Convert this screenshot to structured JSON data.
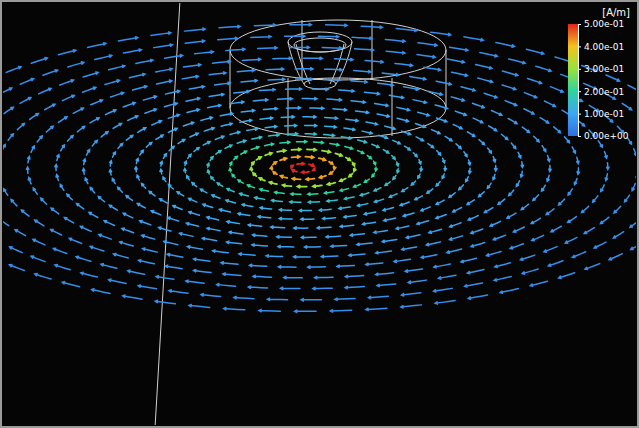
{
  "chart_data": {
    "type": "vector_field",
    "values": [
      0.5,
      0.42,
      0.3,
      0.2,
      0.15,
      0.12,
      0.11,
      0.1,
      0.09,
      0.085,
      0.08,
      0.07,
      0.065,
      0.06,
      0.055,
      0.05
    ],
    "colorbar": {
      "title": "[A/m]",
      "range": [
        0,
        0.5
      ],
      "ticks": [
        {
          "value": 0.5,
          "label": "5.00e-01"
        },
        {
          "value": 0.4,
          "label": "4.00e-01"
        },
        {
          "value": 0.3,
          "label": "3.00e-01"
        },
        {
          "value": 0.2,
          "label": "2.00e-01"
        },
        {
          "value": 0.1,
          "label": "1.00e-01"
        },
        {
          "value": 0,
          "label": "0.00e+00"
        }
      ]
    }
  }
}
